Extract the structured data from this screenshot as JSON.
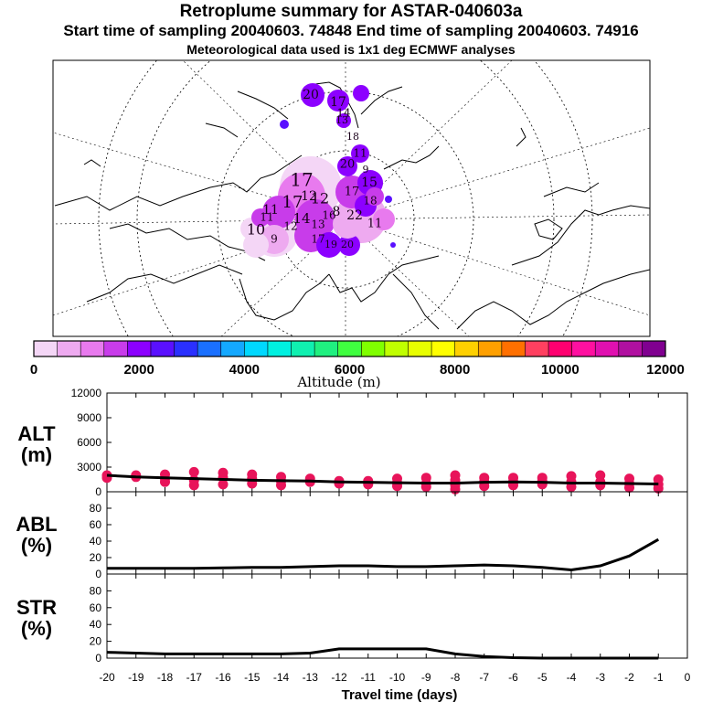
{
  "titles": {
    "line1": "Retroplume summary for ASTAR-040603a",
    "line2": "Start time of sampling 20040603. 74848     End time of sampling 20040603. 74916",
    "line3": "Meteorological data used is 1x1 deg ECMWF analyses"
  },
  "map": {
    "labels": [
      "20",
      "17",
      "18",
      "14",
      "13",
      "11",
      "20",
      "9",
      "15",
      "17",
      "18",
      "17",
      "12",
      "8",
      "22",
      "11",
      "17",
      "12",
      "11",
      "10",
      "11",
      "9",
      "17",
      "19",
      "20",
      "14",
      "13",
      "16",
      "12"
    ]
  },
  "colorbar": {
    "colors": [
      "#f4d6f6",
      "#eeaaf0",
      "#e87aee",
      "#c83cea",
      "#8c00ff",
      "#5a10ff",
      "#2a30ff",
      "#1a70ff",
      "#14a8ff",
      "#00d8ff",
      "#00f0e0",
      "#10f0b0",
      "#20f080",
      "#40ff40",
      "#80ff00",
      "#c0ff00",
      "#e8ff00",
      "#ffff00",
      "#ffd000",
      "#ffa000",
      "#ff7000",
      "#ff4060",
      "#ff0070",
      "#ff10a0",
      "#e010b0",
      "#b010a0",
      "#800090"
    ],
    "tick_labels": [
      "0",
      "2000",
      "4000",
      "6000",
      "8000",
      "10000",
      "12000"
    ],
    "label": "Altitude (m)"
  },
  "chart_data": [
    {
      "type": "scatter",
      "name": "ALT",
      "ylabel_line1": "ALT",
      "ylabel_line2": "(m)",
      "ylim": [
        0,
        12000
      ],
      "yticks": [
        "12000",
        "9000",
        "6000",
        "3000",
        "0"
      ],
      "ytick_values": [
        12000,
        9000,
        6000,
        3000,
        0
      ],
      "x": [
        -20,
        -19,
        -18,
        -17,
        -16,
        -15,
        -14,
        -13,
        -12,
        -11,
        -10,
        -9,
        -8,
        -7,
        -6,
        -5,
        -4,
        -3,
        -2,
        -1
      ],
      "line_values": [
        2000,
        1800,
        1700,
        1600,
        1500,
        1400,
        1350,
        1300,
        1200,
        1150,
        1100,
        1050,
        1050,
        1150,
        1200,
        1150,
        1050,
        1050,
        1000,
        950
      ],
      "points": [
        {
          "x": -20,
          "ys": [
            2000,
            1700
          ]
        },
        {
          "x": -19,
          "ys": [
            1800,
            2000
          ]
        },
        {
          "x": -18,
          "ys": [
            1200,
            1600,
            2100
          ]
        },
        {
          "x": -17,
          "ys": [
            800,
            1400,
            2400
          ]
        },
        {
          "x": -16,
          "ys": [
            900,
            1700,
            2300
          ]
        },
        {
          "x": -15,
          "ys": [
            1000,
            1600,
            2100
          ]
        },
        {
          "x": -14,
          "ys": [
            800,
            1300,
            1800
          ]
        },
        {
          "x": -13,
          "ys": [
            1200,
            1600
          ]
        },
        {
          "x": -12,
          "ys": [
            1000,
            1300
          ]
        },
        {
          "x": -11,
          "ys": [
            900,
            1300
          ]
        },
        {
          "x": -10,
          "ys": [
            700,
            1100,
            1600
          ]
        },
        {
          "x": -9,
          "ys": [
            600,
            1000,
            1700
          ]
        },
        {
          "x": -8,
          "ys": [
            300,
            800,
            1400,
            2000
          ]
        },
        {
          "x": -7,
          "ys": [
            700,
            1200,
            1700
          ]
        },
        {
          "x": -6,
          "ys": [
            800,
            1200,
            1700
          ]
        },
        {
          "x": -5,
          "ys": [
            900,
            1300,
            1700
          ]
        },
        {
          "x": -4,
          "ys": [
            600,
            1200,
            1900
          ]
        },
        {
          "x": -3,
          "ys": [
            800,
            1200,
            2000
          ]
        },
        {
          "x": -2,
          "ys": [
            500,
            1000,
            1600
          ]
        },
        {
          "x": -1,
          "ys": [
            400,
            900,
            1500
          ]
        }
      ]
    },
    {
      "type": "line",
      "name": "ABL",
      "ylabel_line1": "ABL",
      "ylabel_line2": "(%)",
      "ylim": [
        0,
        100
      ],
      "yticks": [
        "80",
        "60",
        "40",
        "20",
        "0"
      ],
      "ytick_values": [
        80,
        60,
        40,
        20,
        0
      ],
      "x": [
        -20,
        -19,
        -18,
        -17,
        -16,
        -15,
        -14,
        -13,
        -12,
        -11,
        -10,
        -9,
        -8,
        -7,
        -6,
        -5,
        -4,
        -3,
        -2,
        -1
      ],
      "values": [
        7,
        7,
        7,
        7,
        7.5,
        8,
        8,
        9,
        10,
        10,
        9,
        9,
        10,
        11,
        10,
        8,
        5,
        10,
        22,
        42
      ]
    },
    {
      "type": "line",
      "name": "STR",
      "ylabel_line1": "STR",
      "ylabel_line2": "(%)",
      "ylim": [
        0,
        100
      ],
      "yticks": [
        "80",
        "60",
        "40",
        "20",
        "0"
      ],
      "ytick_values": [
        80,
        60,
        40,
        20,
        0
      ],
      "x": [
        -20,
        -19,
        -18,
        -17,
        -16,
        -15,
        -14,
        -13,
        -12,
        -11,
        -10,
        -9,
        -8,
        -7,
        -6,
        -5,
        -4,
        -3,
        -2,
        -1
      ],
      "values": [
        7,
        6,
        5,
        5,
        5,
        5,
        5,
        6,
        11,
        11,
        11,
        11,
        5,
        2,
        0.5,
        0,
        0,
        0,
        0,
        0
      ]
    }
  ],
  "xaxis": {
    "tick_labels": [
      "-20",
      "-19",
      "-18",
      "-17",
      "-16",
      "-15",
      "-14",
      "-13",
      "-12",
      "-11",
      "-10",
      "-9",
      "-8",
      "-7",
      "-6",
      "-5",
      "-4",
      "-3",
      "-2",
      "-1",
      "0"
    ],
    "label": "Travel time (days)"
  }
}
